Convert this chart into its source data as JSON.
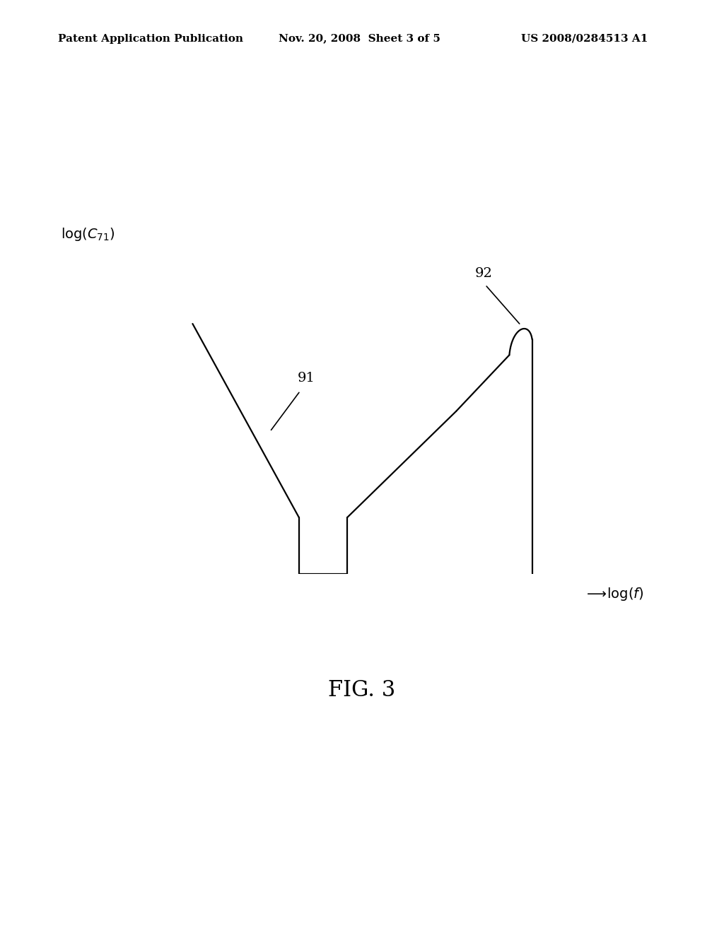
{
  "background_color": "#ffffff",
  "header_left": "Patent Application Publication",
  "header_mid": "Nov. 20, 2008  Sheet 3 of 5",
  "header_right": "US 2008/0284513 A1",
  "figure_label": "FIG. 3",
  "line_color": "#000000",
  "line_width": 1.6,
  "label_91": "91",
  "label_92": "92",
  "header_fontsize": 11,
  "figlabel_fontsize": 22,
  "axis_label_fontsize": 14
}
